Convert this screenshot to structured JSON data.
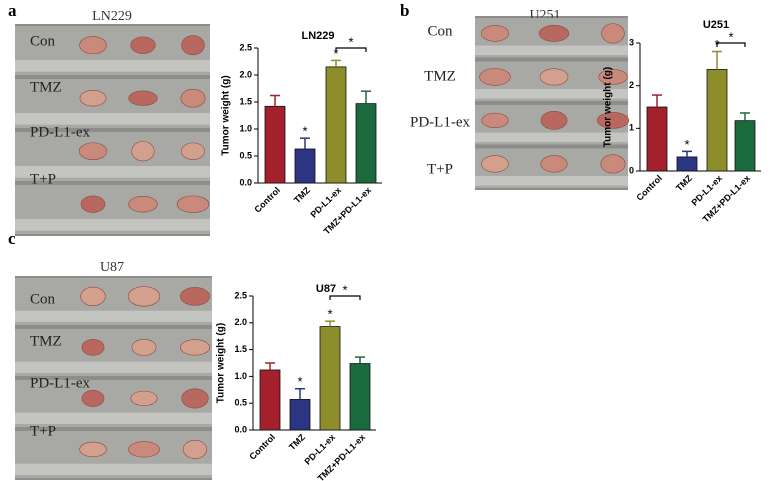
{
  "panels": [
    {
      "letter": "a",
      "photo_title": "LN229",
      "rows": [
        "Con",
        "TMZ",
        "PD-L1-ex",
        "T+P"
      ]
    },
    {
      "letter": "b",
      "photo_title": "U251",
      "rows": [
        "Con",
        "TMZ",
        "PD-L1-ex",
        "T+P"
      ]
    },
    {
      "letter": "c",
      "photo_title": "U87",
      "rows": [
        "Con",
        "TMZ",
        "PD-L1-ex",
        "T+P"
      ]
    }
  ],
  "chart_data": [
    {
      "type": "bar",
      "title": "LN229",
      "ylabel": "Tumor weight (g)",
      "categories": [
        "Control",
        "TMZ",
        "PD-L1-ex",
        "TMZ+PD-L1-ex"
      ],
      "values": [
        1.42,
        0.63,
        2.15,
        1.47
      ],
      "errors": [
        0.2,
        0.2,
        0.12,
        0.23
      ],
      "colors": [
        "#a3202c",
        "#2c3581",
        "#8e8d2b",
        "#1b6a3d"
      ],
      "markers": [
        null,
        "*",
        "*",
        null
      ],
      "bracket": {
        "categories": [
          "PD-L1-ex",
          "TMZ+PD-L1-ex"
        ],
        "label": "*"
      },
      "ylim": [
        0,
        2.5
      ],
      "yticks": [
        {
          "value": 0,
          "label": "0.0"
        },
        0.5,
        {
          "value": 1,
          "label": "1.0"
        },
        1.5,
        {
          "value": 2,
          "label": "2.0"
        },
        2.5
      ]
    },
    {
      "type": "bar",
      "title": "U251",
      "ylabel": "Tumor weight (g)",
      "categories": [
        "Control",
        "TMZ",
        "PD-L1-ex",
        "TMZ+PD-L1-ex"
      ],
      "values": [
        1.5,
        0.33,
        2.38,
        1.18
      ],
      "errors": [
        0.28,
        0.13,
        0.42,
        0.18
      ],
      "colors": [
        "#a3202c",
        "#2c3581",
        "#8e8d2b",
        "#1b6a3d"
      ],
      "markers": [
        null,
        "*",
        "*",
        null
      ],
      "bracket": {
        "categories": [
          "PD-L1-ex",
          "TMZ+PD-L1-ex"
        ],
        "label": "*"
      },
      "ylim": [
        0,
        3
      ],
      "yticks": [
        0,
        1,
        2,
        3
      ]
    },
    {
      "type": "bar",
      "title": "U87",
      "ylabel": "Tumor weight (g)",
      "categories": [
        "Control",
        "TMZ",
        "PD-L1-ex",
        "TMZ+PD-L1-ex"
      ],
      "values": [
        1.12,
        0.57,
        1.93,
        1.24
      ],
      "errors": [
        0.13,
        0.2,
        0.1,
        0.12
      ],
      "colors": [
        "#a3202c",
        "#2c3581",
        "#8e8d2b",
        "#1b6a3d"
      ],
      "markers": [
        null,
        "*",
        "*",
        null
      ],
      "bracket": {
        "categories": [
          "PD-L1-ex",
          "TMZ+PD-L1-ex"
        ],
        "label": "*"
      },
      "ylim": [
        0,
        2.5
      ],
      "yticks": [
        {
          "value": 0,
          "label": "0.0"
        },
        0.5,
        {
          "value": 1,
          "label": "1.0"
        },
        1.5,
        {
          "value": 2,
          "label": "2.0"
        },
        2.5
      ]
    }
  ]
}
